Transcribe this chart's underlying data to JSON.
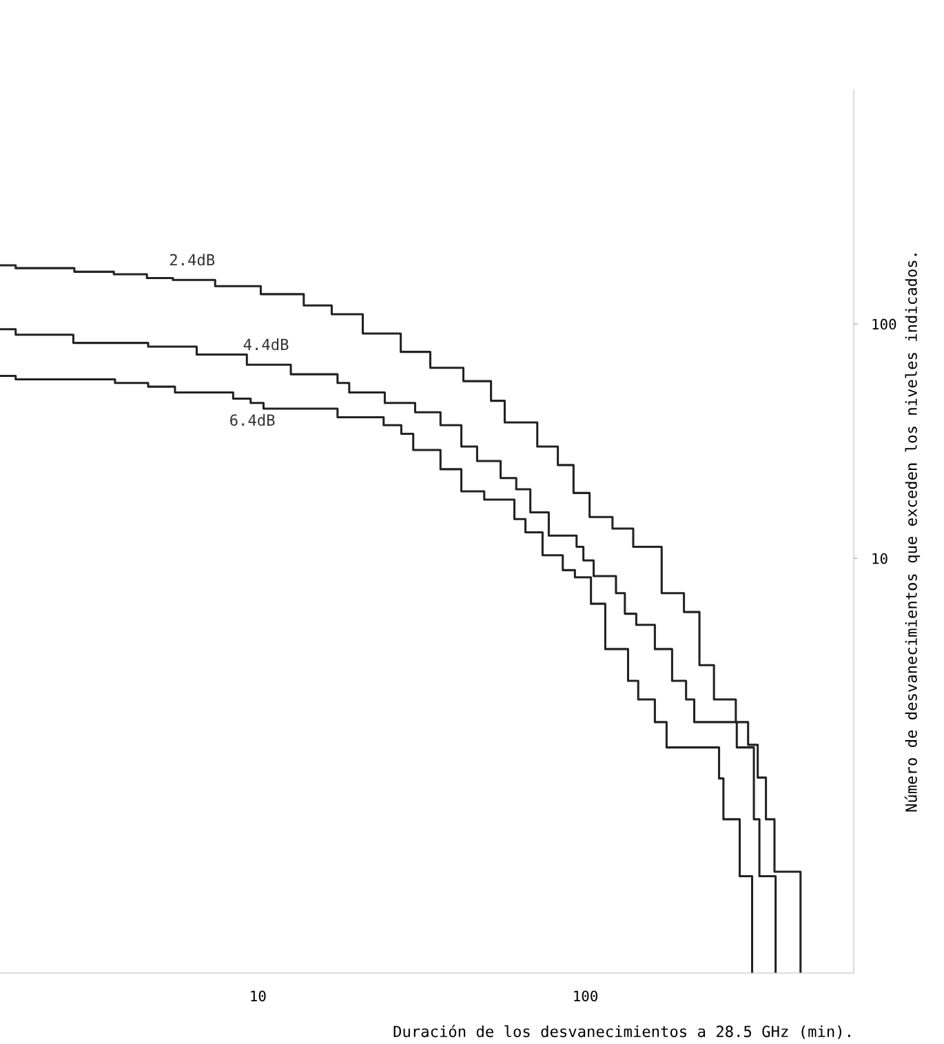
{
  "chart_data": {
    "type": "step",
    "xlabel": "Duración de los desvanecimientos a 28.5 GHz (min).",
    "ylabel": "Número de desvanecimientos que exceden los niveles indicados.",
    "log": "xy",
    "xlim": [
      1.63,
      660
    ],
    "ylim": [
      0.17,
      1000
    ],
    "xticks": [
      10,
      100
    ],
    "yticks": [
      10,
      100
    ],
    "grid": false,
    "legend": false,
    "series": [
      {
        "name": "2.4dB",
        "color": "#222222",
        "x": [
          1.63,
          1.82,
          2.75,
          3.63,
          4.58,
          5.5,
          7.4,
          10.2,
          13.8,
          16.8,
          20.9,
          27.3,
          33.6,
          42.4,
          51.5,
          56.7,
          71.3,
          82.4,
          92,
          103,
          121,
          140,
          171,
          200,
          223,
          247,
          288,
          314,
          336,
          356,
          378,
          454
        ],
        "values": [
          178,
          173,
          167,
          163,
          157,
          154,
          145,
          134,
          120,
          110,
          91,
          76,
          65,
          57,
          47,
          38,
          30,
          25,
          19,
          15,
          13.4,
          11.2,
          7.1,
          5.9,
          3.5,
          2.5,
          2.0,
          1.6,
          1.16,
          0.77,
          0.46,
          0.17
        ]
      },
      {
        "name": "4.4dB",
        "color": "#222222",
        "x": [
          1.63,
          1.82,
          2.73,
          4.62,
          6.5,
          9.25,
          12.6,
          17.5,
          19.0,
          24.4,
          30.2,
          36.1,
          41.8,
          46.7,
          55.1,
          61.5,
          67.9,
          77.3,
          94,
          98.6,
          106,
          124,
          132,
          143,
          163,
          184,
          203,
          215,
          290,
          327,
          340,
          381
        ],
        "values": [
          95,
          90,
          83,
          80,
          74,
          67,
          61,
          56,
          51,
          46,
          42,
          37,
          30,
          26,
          22,
          19.7,
          15.7,
          12.5,
          11.2,
          9.8,
          8.4,
          7.1,
          5.8,
          5.2,
          4.1,
          3.0,
          2.5,
          2.0,
          1.56,
          0.77,
          0.44,
          0.17
        ]
      },
      {
        "name": "6.4dB",
        "color": "#222222",
        "x": [
          1.63,
          1.82,
          3.66,
          4.62,
          5.58,
          8.4,
          9.5,
          10.4,
          17.5,
          24.2,
          27.4,
          29.8,
          36.1,
          41.8,
          49.1,
          60.7,
          65.6,
          74,
          85.3,
          92.9,
          104,
          115,
          135,
          145,
          163,
          177,
          256,
          264,
          296,
          323
        ],
        "values": [
          60,
          58,
          56,
          54,
          51,
          48,
          46,
          43.5,
          40,
          37,
          34,
          29,
          24,
          19.3,
          17.8,
          14.7,
          12.9,
          10.3,
          8.9,
          8.3,
          6.4,
          4.1,
          3.0,
          2.5,
          2.0,
          1.56,
          1.15,
          0.77,
          0.44,
          0.17
        ]
      }
    ],
    "line_style": "solid",
    "marker": "none"
  }
}
